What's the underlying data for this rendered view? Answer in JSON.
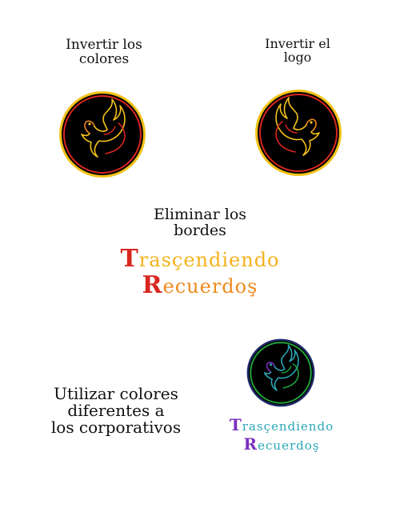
{
  "captions": {
    "invert_colors": [
      "Invertir los",
      "colores"
    ],
    "invert_logo": [
      "Invertir el",
      "logo"
    ],
    "remove_borders": [
      "Eliminar los",
      "bordes"
    ],
    "other_colors": [
      "Utilizar colores",
      "diferentes a",
      "los corporativos"
    ]
  },
  "wordmark": {
    "line1_initial": "T",
    "line1_rest": "rasçendiendo",
    "line2_initial": "R",
    "line2_rest": "ecuerdoş"
  },
  "icons": [
    "dove-flame-logo"
  ],
  "colors": {
    "red": "#d8261f",
    "orange": "#f08a1c",
    "yellow": "#f4c21a",
    "black": "#000000",
    "purple": "#7a2fbf",
    "green": "#1fa33a",
    "teal": "#2aa7b7",
    "navy": "#1f2a6b"
  }
}
